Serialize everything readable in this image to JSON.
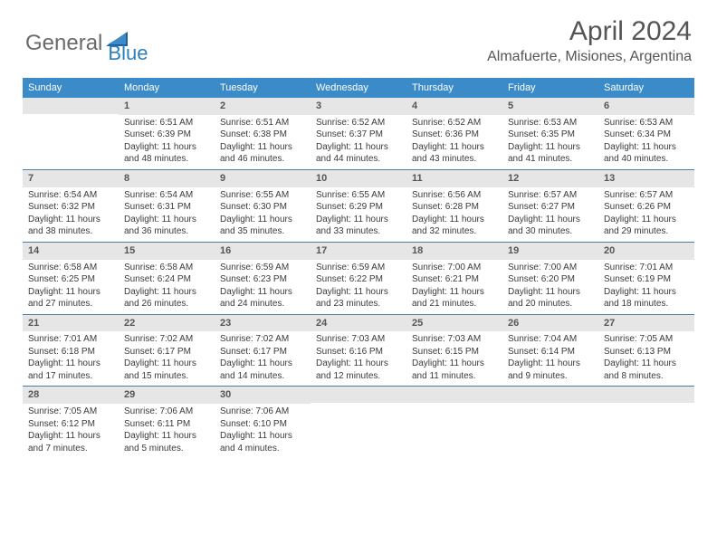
{
  "logo": {
    "text1": "General",
    "text2": "Blue"
  },
  "title": "April 2024",
  "location": "Almafuerte, Misiones, Argentina",
  "colors": {
    "header_bar": "#3b8bc9",
    "daynum_bg": "#e6e6e6",
    "row_divider": "#4a7aa5",
    "text": "#3a3a3a",
    "logo_gray": "#6a6a6a",
    "logo_blue": "#2a7fbf"
  },
  "weekdays": [
    "Sunday",
    "Monday",
    "Tuesday",
    "Wednesday",
    "Thursday",
    "Friday",
    "Saturday"
  ],
  "weeks": [
    [
      null,
      {
        "num": "1",
        "sunrise": "Sunrise: 6:51 AM",
        "sunset": "Sunset: 6:39 PM",
        "day1": "Daylight: 11 hours",
        "day2": "and 48 minutes."
      },
      {
        "num": "2",
        "sunrise": "Sunrise: 6:51 AM",
        "sunset": "Sunset: 6:38 PM",
        "day1": "Daylight: 11 hours",
        "day2": "and 46 minutes."
      },
      {
        "num": "3",
        "sunrise": "Sunrise: 6:52 AM",
        "sunset": "Sunset: 6:37 PM",
        "day1": "Daylight: 11 hours",
        "day2": "and 44 minutes."
      },
      {
        "num": "4",
        "sunrise": "Sunrise: 6:52 AM",
        "sunset": "Sunset: 6:36 PM",
        "day1": "Daylight: 11 hours",
        "day2": "and 43 minutes."
      },
      {
        "num": "5",
        "sunrise": "Sunrise: 6:53 AM",
        "sunset": "Sunset: 6:35 PM",
        "day1": "Daylight: 11 hours",
        "day2": "and 41 minutes."
      },
      {
        "num": "6",
        "sunrise": "Sunrise: 6:53 AM",
        "sunset": "Sunset: 6:34 PM",
        "day1": "Daylight: 11 hours",
        "day2": "and 40 minutes."
      }
    ],
    [
      {
        "num": "7",
        "sunrise": "Sunrise: 6:54 AM",
        "sunset": "Sunset: 6:32 PM",
        "day1": "Daylight: 11 hours",
        "day2": "and 38 minutes."
      },
      {
        "num": "8",
        "sunrise": "Sunrise: 6:54 AM",
        "sunset": "Sunset: 6:31 PM",
        "day1": "Daylight: 11 hours",
        "day2": "and 36 minutes."
      },
      {
        "num": "9",
        "sunrise": "Sunrise: 6:55 AM",
        "sunset": "Sunset: 6:30 PM",
        "day1": "Daylight: 11 hours",
        "day2": "and 35 minutes."
      },
      {
        "num": "10",
        "sunrise": "Sunrise: 6:55 AM",
        "sunset": "Sunset: 6:29 PM",
        "day1": "Daylight: 11 hours",
        "day2": "and 33 minutes."
      },
      {
        "num": "11",
        "sunrise": "Sunrise: 6:56 AM",
        "sunset": "Sunset: 6:28 PM",
        "day1": "Daylight: 11 hours",
        "day2": "and 32 minutes."
      },
      {
        "num": "12",
        "sunrise": "Sunrise: 6:57 AM",
        "sunset": "Sunset: 6:27 PM",
        "day1": "Daylight: 11 hours",
        "day2": "and 30 minutes."
      },
      {
        "num": "13",
        "sunrise": "Sunrise: 6:57 AM",
        "sunset": "Sunset: 6:26 PM",
        "day1": "Daylight: 11 hours",
        "day2": "and 29 minutes."
      }
    ],
    [
      {
        "num": "14",
        "sunrise": "Sunrise: 6:58 AM",
        "sunset": "Sunset: 6:25 PM",
        "day1": "Daylight: 11 hours",
        "day2": "and 27 minutes."
      },
      {
        "num": "15",
        "sunrise": "Sunrise: 6:58 AM",
        "sunset": "Sunset: 6:24 PM",
        "day1": "Daylight: 11 hours",
        "day2": "and 26 minutes."
      },
      {
        "num": "16",
        "sunrise": "Sunrise: 6:59 AM",
        "sunset": "Sunset: 6:23 PM",
        "day1": "Daylight: 11 hours",
        "day2": "and 24 minutes."
      },
      {
        "num": "17",
        "sunrise": "Sunrise: 6:59 AM",
        "sunset": "Sunset: 6:22 PM",
        "day1": "Daylight: 11 hours",
        "day2": "and 23 minutes."
      },
      {
        "num": "18",
        "sunrise": "Sunrise: 7:00 AM",
        "sunset": "Sunset: 6:21 PM",
        "day1": "Daylight: 11 hours",
        "day2": "and 21 minutes."
      },
      {
        "num": "19",
        "sunrise": "Sunrise: 7:00 AM",
        "sunset": "Sunset: 6:20 PM",
        "day1": "Daylight: 11 hours",
        "day2": "and 20 minutes."
      },
      {
        "num": "20",
        "sunrise": "Sunrise: 7:01 AM",
        "sunset": "Sunset: 6:19 PM",
        "day1": "Daylight: 11 hours",
        "day2": "and 18 minutes."
      }
    ],
    [
      {
        "num": "21",
        "sunrise": "Sunrise: 7:01 AM",
        "sunset": "Sunset: 6:18 PM",
        "day1": "Daylight: 11 hours",
        "day2": "and 17 minutes."
      },
      {
        "num": "22",
        "sunrise": "Sunrise: 7:02 AM",
        "sunset": "Sunset: 6:17 PM",
        "day1": "Daylight: 11 hours",
        "day2": "and 15 minutes."
      },
      {
        "num": "23",
        "sunrise": "Sunrise: 7:02 AM",
        "sunset": "Sunset: 6:17 PM",
        "day1": "Daylight: 11 hours",
        "day2": "and 14 minutes."
      },
      {
        "num": "24",
        "sunrise": "Sunrise: 7:03 AM",
        "sunset": "Sunset: 6:16 PM",
        "day1": "Daylight: 11 hours",
        "day2": "and 12 minutes."
      },
      {
        "num": "25",
        "sunrise": "Sunrise: 7:03 AM",
        "sunset": "Sunset: 6:15 PM",
        "day1": "Daylight: 11 hours",
        "day2": "and 11 minutes."
      },
      {
        "num": "26",
        "sunrise": "Sunrise: 7:04 AM",
        "sunset": "Sunset: 6:14 PM",
        "day1": "Daylight: 11 hours",
        "day2": "and 9 minutes."
      },
      {
        "num": "27",
        "sunrise": "Sunrise: 7:05 AM",
        "sunset": "Sunset: 6:13 PM",
        "day1": "Daylight: 11 hours",
        "day2": "and 8 minutes."
      }
    ],
    [
      {
        "num": "28",
        "sunrise": "Sunrise: 7:05 AM",
        "sunset": "Sunset: 6:12 PM",
        "day1": "Daylight: 11 hours",
        "day2": "and 7 minutes."
      },
      {
        "num": "29",
        "sunrise": "Sunrise: 7:06 AM",
        "sunset": "Sunset: 6:11 PM",
        "day1": "Daylight: 11 hours",
        "day2": "and 5 minutes."
      },
      {
        "num": "30",
        "sunrise": "Sunrise: 7:06 AM",
        "sunset": "Sunset: 6:10 PM",
        "day1": "Daylight: 11 hours",
        "day2": "and 4 minutes."
      },
      null,
      null,
      null,
      null
    ]
  ]
}
